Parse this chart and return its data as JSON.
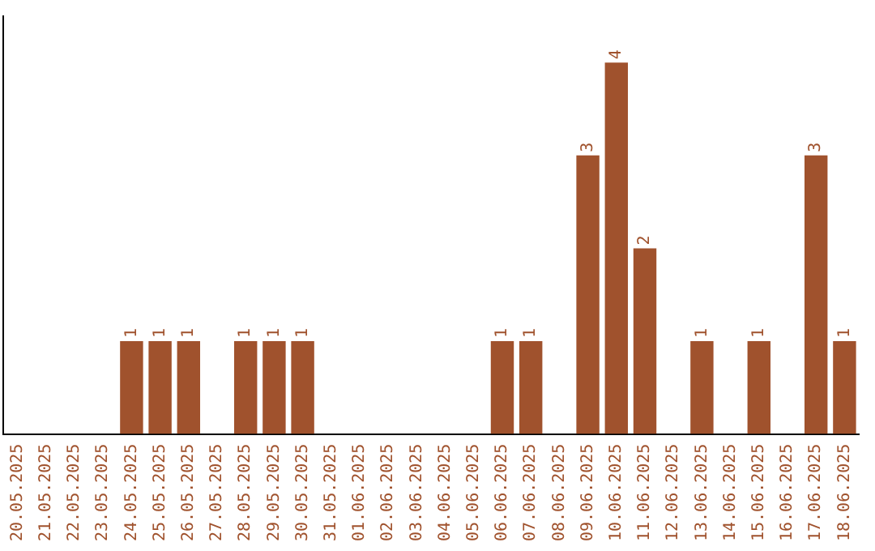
{
  "chart_data": {
    "type": "bar",
    "categories": [
      "20.05.2025",
      "21.05.2025",
      "22.05.2025",
      "23.05.2025",
      "24.05.2025",
      "25.05.2025",
      "26.05.2025",
      "27.05.2025",
      "28.05.2025",
      "29.05.2025",
      "30.05.2025",
      "31.05.2025",
      "01.06.2025",
      "02.06.2025",
      "03.06.2025",
      "04.06.2025",
      "05.06.2025",
      "06.06.2025",
      "07.06.2025",
      "08.06.2025",
      "09.06.2025",
      "10.06.2025",
      "11.06.2025",
      "12.06.2025",
      "13.06.2025",
      "14.06.2025",
      "15.06.2025",
      "16.06.2025",
      "17.06.2025",
      "18.06.2025"
    ],
    "values": [
      0,
      0,
      0,
      0,
      1,
      1,
      1,
      0,
      1,
      1,
      1,
      0,
      0,
      0,
      0,
      0,
      0,
      1,
      1,
      0,
      3,
      4,
      2,
      0,
      1,
      0,
      1,
      0,
      3,
      1
    ],
    "value_labels": [
      null,
      null,
      null,
      null,
      "1",
      "1",
      "1",
      null,
      "1",
      "1",
      "1",
      null,
      null,
      null,
      null,
      null,
      null,
      "1",
      "1",
      null,
      "3",
      "4",
      "2",
      null,
      "1",
      null,
      "1",
      null,
      "3",
      "1"
    ],
    "color": "#a0522d",
    "grid": false,
    "legend": false
  }
}
